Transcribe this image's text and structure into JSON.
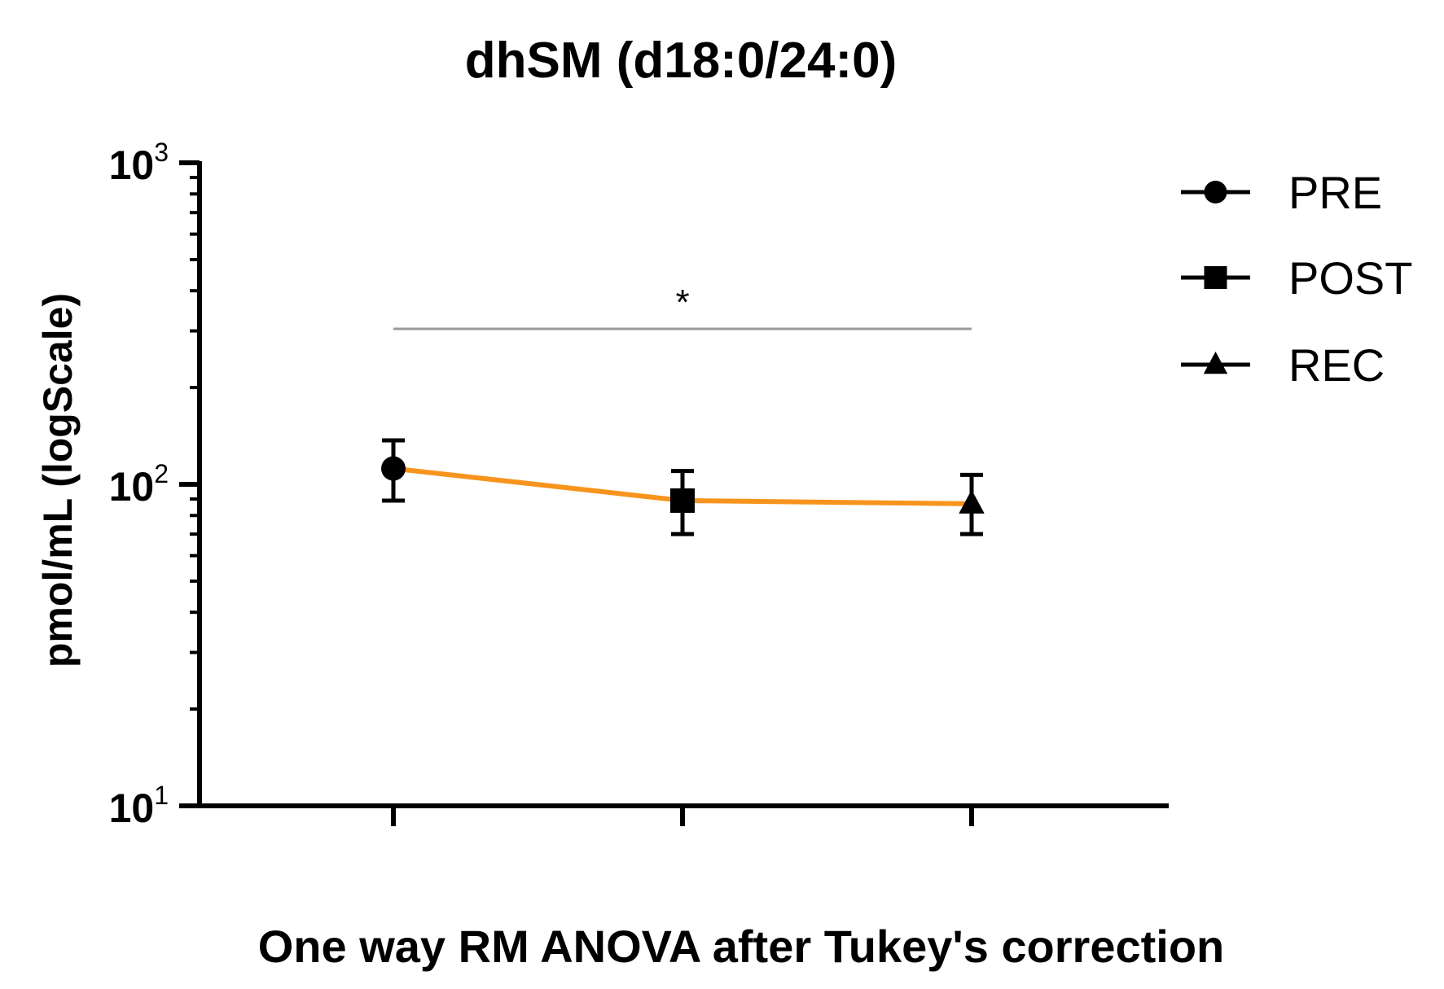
{
  "chart_data": {
    "type": "line",
    "title": "dhSM (d18:0/24:0)",
    "xlabel": "One way RM ANOVA after Tukey's correction",
    "ylabel": "pmol/mL (logScale)",
    "yscale": "log",
    "ylim": [
      10,
      1000
    ],
    "yticks": [
      {
        "value": 1000,
        "base": "10",
        "exp": "3"
      },
      {
        "value": 100,
        "base": "10",
        "exp": "2"
      },
      {
        "value": 10,
        "base": "10",
        "exp": "1"
      }
    ],
    "categories": [
      "PRE",
      "POST",
      "REC"
    ],
    "values": [
      112,
      89,
      87
    ],
    "error_low": [
      89,
      70,
      70
    ],
    "error_high": [
      137,
      110,
      107
    ],
    "markers": [
      "circle",
      "square",
      "triangle"
    ],
    "line_color": "#F7941D",
    "marker_color": "#000000",
    "grid": false,
    "legend": {
      "position": "top-right",
      "entries": [
        {
          "label": "PRE",
          "marker": "circle"
        },
        {
          "label": "POST",
          "marker": "square"
        },
        {
          "label": "REC",
          "marker": "triangle"
        }
      ]
    },
    "annotations": [
      {
        "text": "*",
        "from": "PRE",
        "to": "REC",
        "type": "significance-bracket"
      }
    ]
  }
}
